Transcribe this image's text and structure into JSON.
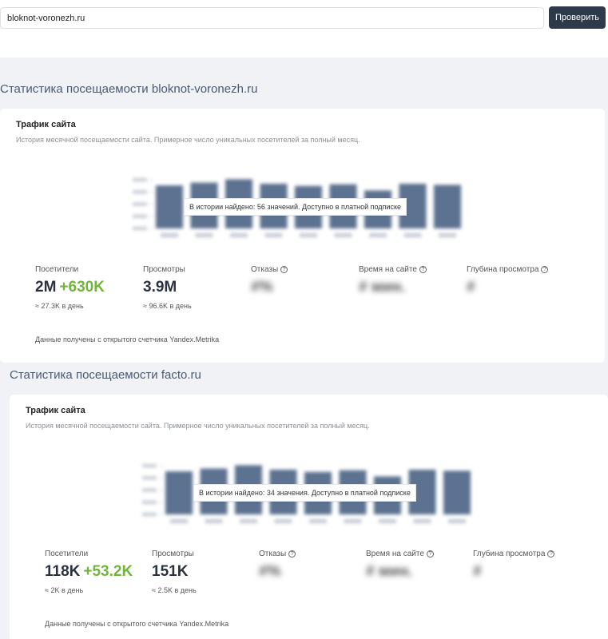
{
  "search": {
    "value": "bloknot-voronezh.ru",
    "button_label": "Проверить"
  },
  "sections": [
    {
      "title": "Статистика посещаемости bloknot-voronezh.ru",
      "card_title": "Трафик сайта",
      "card_desc": "История месячной посещаемости сайта. Примерное число уникальных посетителей за полный месяц.",
      "overlay": "В истории найдено: 56 значений. Доступно в платной подписке",
      "chart_levels": [
        0.77,
        0.82,
        0.88,
        0.8,
        0.76,
        0.79,
        0.68,
        0.8,
        0.78
      ],
      "metrics": {
        "visitors_label": "Посетители",
        "visitors_value": "2M",
        "visitors_delta": "+630K",
        "visitors_sub": "≈ 27.3K в день",
        "views_label": "Просмотры",
        "views_value": "3.9M",
        "views_sub": "≈ 96.6K в день",
        "bounce_label": "Отказы",
        "bounce_value": "#%",
        "time_label": "Время на сайте",
        "time_value": "# мин.",
        "depth_label": "Глубина просмотра",
        "depth_value": "#"
      },
      "source": "Данные получены с открытого счетчика Yandex.Metrika"
    },
    {
      "title": "Статистика посещаемости facto.ru",
      "card_title": "Трафик сайта",
      "card_desc": "История месячной посещаемости сайта. Примерное число уникальных посетителей за полный месяц.",
      "overlay": "В истории найдено: 34 значения. Доступно в платной подписке",
      "chart_levels": [
        0.77,
        0.82,
        0.88,
        0.8,
        0.76,
        0.79,
        0.68,
        0.8,
        0.78
      ],
      "metrics": {
        "visitors_label": "Посетители",
        "visitors_value": "118K",
        "visitors_delta": "+53.2K",
        "visitors_sub": "≈ 2K в день",
        "views_label": "Просмотры",
        "views_value": "151K",
        "views_sub": "≈ 2.5K в день",
        "bounce_label": "Отказы",
        "bounce_value": "#%",
        "time_label": "Время на сайте",
        "time_value": "# мин.",
        "depth_label": "Глубина просмотра",
        "depth_value": "#"
      },
      "source": "Данные получены с открытого счетчика Yandex.Metrika"
    }
  ],
  "colors": {
    "bar": "#5c7290",
    "accent_green": "#73b43c",
    "button_bg": "#2d3a4a"
  }
}
